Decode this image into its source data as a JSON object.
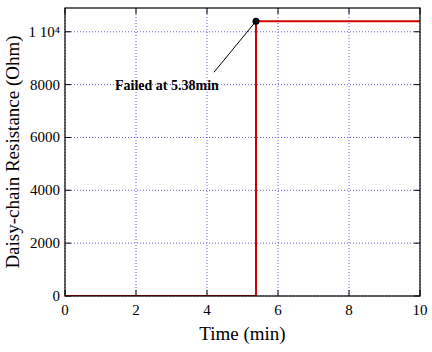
{
  "chart_data": {
    "type": "line",
    "x_label": "Time (min)",
    "y_label": "Daisy-chain Resistance (Ohm)",
    "x": [
      0,
      5.38,
      5.38,
      10
    ],
    "values": [
      0,
      0,
      10400,
      10400
    ],
    "color": "#d40000",
    "xlim": [
      0,
      10
    ],
    "xticks": [
      0,
      2,
      4,
      6,
      8,
      10
    ],
    "ylim": [
      0,
      10900
    ],
    "yticks": [
      0,
      2000,
      4000,
      6000,
      8000,
      {
        "value": 10000,
        "label": "1 10⁴"
      }
    ],
    "grid": true,
    "annotations": [
      {
        "text": "Failed at 5.38min",
        "x": 5.38,
        "y": 10400
      }
    ]
  }
}
